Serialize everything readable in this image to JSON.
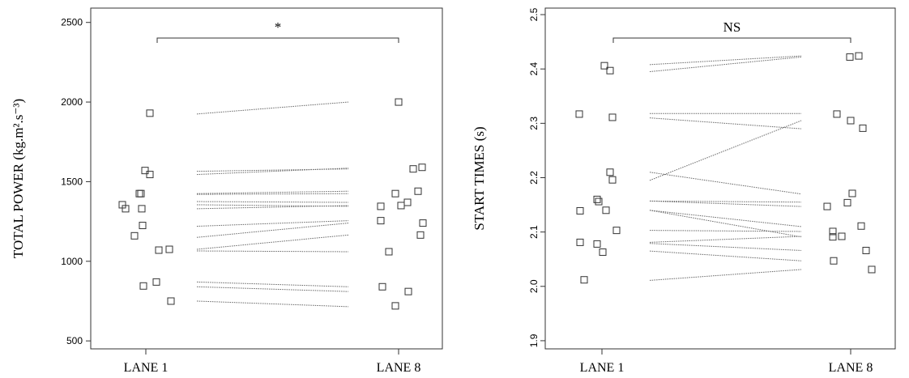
{
  "chart_data": [
    {
      "type": "scatter",
      "title": "",
      "ylabel": "TOTAL POWER  (kg.m².s⁻³)",
      "xlabel": "",
      "categories": [
        "LANE 1",
        "LANE 8"
      ],
      "ylim": [
        450,
        2590
      ],
      "yticks": [
        500,
        1000,
        1500,
        2000,
        2500
      ],
      "grid": false,
      "significance": "*",
      "lane1": [
        1355,
        1330,
        1160,
        1425,
        1425,
        1330,
        1225,
        1570,
        1545,
        1930,
        1070,
        1075,
        845,
        870,
        750
      ],
      "lane8": [
        1345,
        1255,
        1060,
        840,
        2000,
        1425,
        1350,
        1370,
        1580,
        1590,
        1440,
        1240,
        1165,
        810,
        720
      ],
      "pairs": [
        [
          1925,
          2000
        ],
        [
          1565,
          1580
        ],
        [
          1545,
          1585
        ],
        [
          1425,
          1440
        ],
        [
          1420,
          1425
        ],
        [
          1375,
          1370
        ],
        [
          1355,
          1345
        ],
        [
          1330,
          1350
        ],
        [
          1220,
          1255
        ],
        [
          1150,
          1240
        ],
        [
          1075,
          1165
        ],
        [
          1065,
          1060
        ],
        [
          870,
          840
        ],
        [
          840,
          810
        ],
        [
          750,
          715
        ]
      ]
    },
    {
      "type": "scatter",
      "title": "",
      "ylabel": "START TIMES (s)",
      "xlabel": "",
      "categories": [
        "LANE 1",
        "LANE 8"
      ],
      "ylim": [
        1.885,
        2.512
      ],
      "yticks": [
        1.9,
        2.0,
        2.1,
        2.2,
        2.3,
        2.4,
        2.5
      ],
      "ytick_labels": [
        "1.9",
        "2.0",
        "2.1",
        "2.2",
        "2.3",
        "2.4",
        "2.5"
      ],
      "grid": false,
      "significance": "NS",
      "lane1": [
        2.317,
        2.139,
        2.081,
        2.012,
        2.406,
        2.397,
        2.311,
        2.21,
        2.196,
        2.16,
        2.156,
        2.14,
        2.103,
        2.078,
        2.063
      ],
      "lane8": [
        2.317,
        2.305,
        2.291,
        2.147,
        2.154,
        2.171,
        2.111,
        2.101,
        2.091,
        2.092,
        2.047,
        2.422,
        2.424,
        2.066,
        2.031
      ],
      "pairs": [
        [
          2.408,
          2.424
        ],
        [
          2.395,
          2.422
        ],
        [
          2.318,
          2.318
        ],
        [
          2.31,
          2.29
        ],
        [
          2.195,
          2.305
        ],
        [
          2.21,
          2.17
        ],
        [
          2.157,
          2.155
        ],
        [
          2.157,
          2.147
        ],
        [
          2.14,
          2.11
        ],
        [
          2.14,
          2.091
        ],
        [
          2.103,
          2.101
        ],
        [
          2.081,
          2.092
        ],
        [
          2.079,
          2.066
        ],
        [
          2.065,
          2.047
        ],
        [
          2.011,
          2.031
        ]
      ]
    }
  ]
}
